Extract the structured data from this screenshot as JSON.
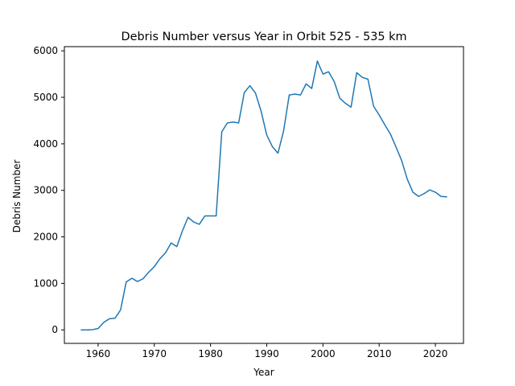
{
  "chart_data": {
    "type": "line",
    "title": "Debris Number versus Year in Orbit 525 - 535 km",
    "xlabel": "Year",
    "ylabel": "Debris Number",
    "xlim": [
      1954,
      2025
    ],
    "ylim": [
      -290,
      6090
    ],
    "xticks": [
      1960,
      1970,
      1980,
      1990,
      2000,
      2010,
      2020
    ],
    "yticks": [
      0,
      1000,
      2000,
      3000,
      4000,
      5000,
      6000
    ],
    "grid": false,
    "line_color": "#1f77b4",
    "series": [
      {
        "x": [
          1957,
          1958,
          1959,
          1960,
          1961,
          1962,
          1963,
          1964,
          1965,
          1966,
          1967,
          1968,
          1969,
          1970,
          1971,
          1972,
          1973,
          1974,
          1975,
          1976,
          1977,
          1978,
          1979,
          1980,
          1981,
          1982,
          1983,
          1984,
          1985,
          1986,
          1987,
          1988,
          1989,
          1990,
          1991,
          1992,
          1993,
          1994,
          1995,
          1996,
          1997,
          1998,
          1999,
          2000,
          2001,
          2002,
          2003,
          2004,
          2005,
          2006,
          2007,
          2008,
          2009,
          2010,
          2011,
          2012,
          2013,
          2014,
          2015,
          2016,
          2017,
          2018,
          2019,
          2020,
          2021,
          2022
        ],
        "y": [
          0,
          0,
          5,
          30,
          160,
          240,
          250,
          430,
          1030,
          1110,
          1040,
          1100,
          1240,
          1360,
          1530,
          1660,
          1870,
          1790,
          2130,
          2420,
          2320,
          2270,
          2450,
          2450,
          2450,
          4260,
          4450,
          4470,
          4450,
          5100,
          5250,
          5090,
          4700,
          4190,
          3940,
          3800,
          4280,
          5050,
          5070,
          5050,
          5290,
          5190,
          5780,
          5500,
          5550,
          5340,
          4980,
          4870,
          4790,
          5530,
          5430,
          5390,
          4810,
          4620,
          4410,
          4210,
          3930,
          3640,
          3240,
          2960,
          2870,
          2930,
          3010,
          2960,
          2870,
          2860
        ]
      }
    ]
  }
}
